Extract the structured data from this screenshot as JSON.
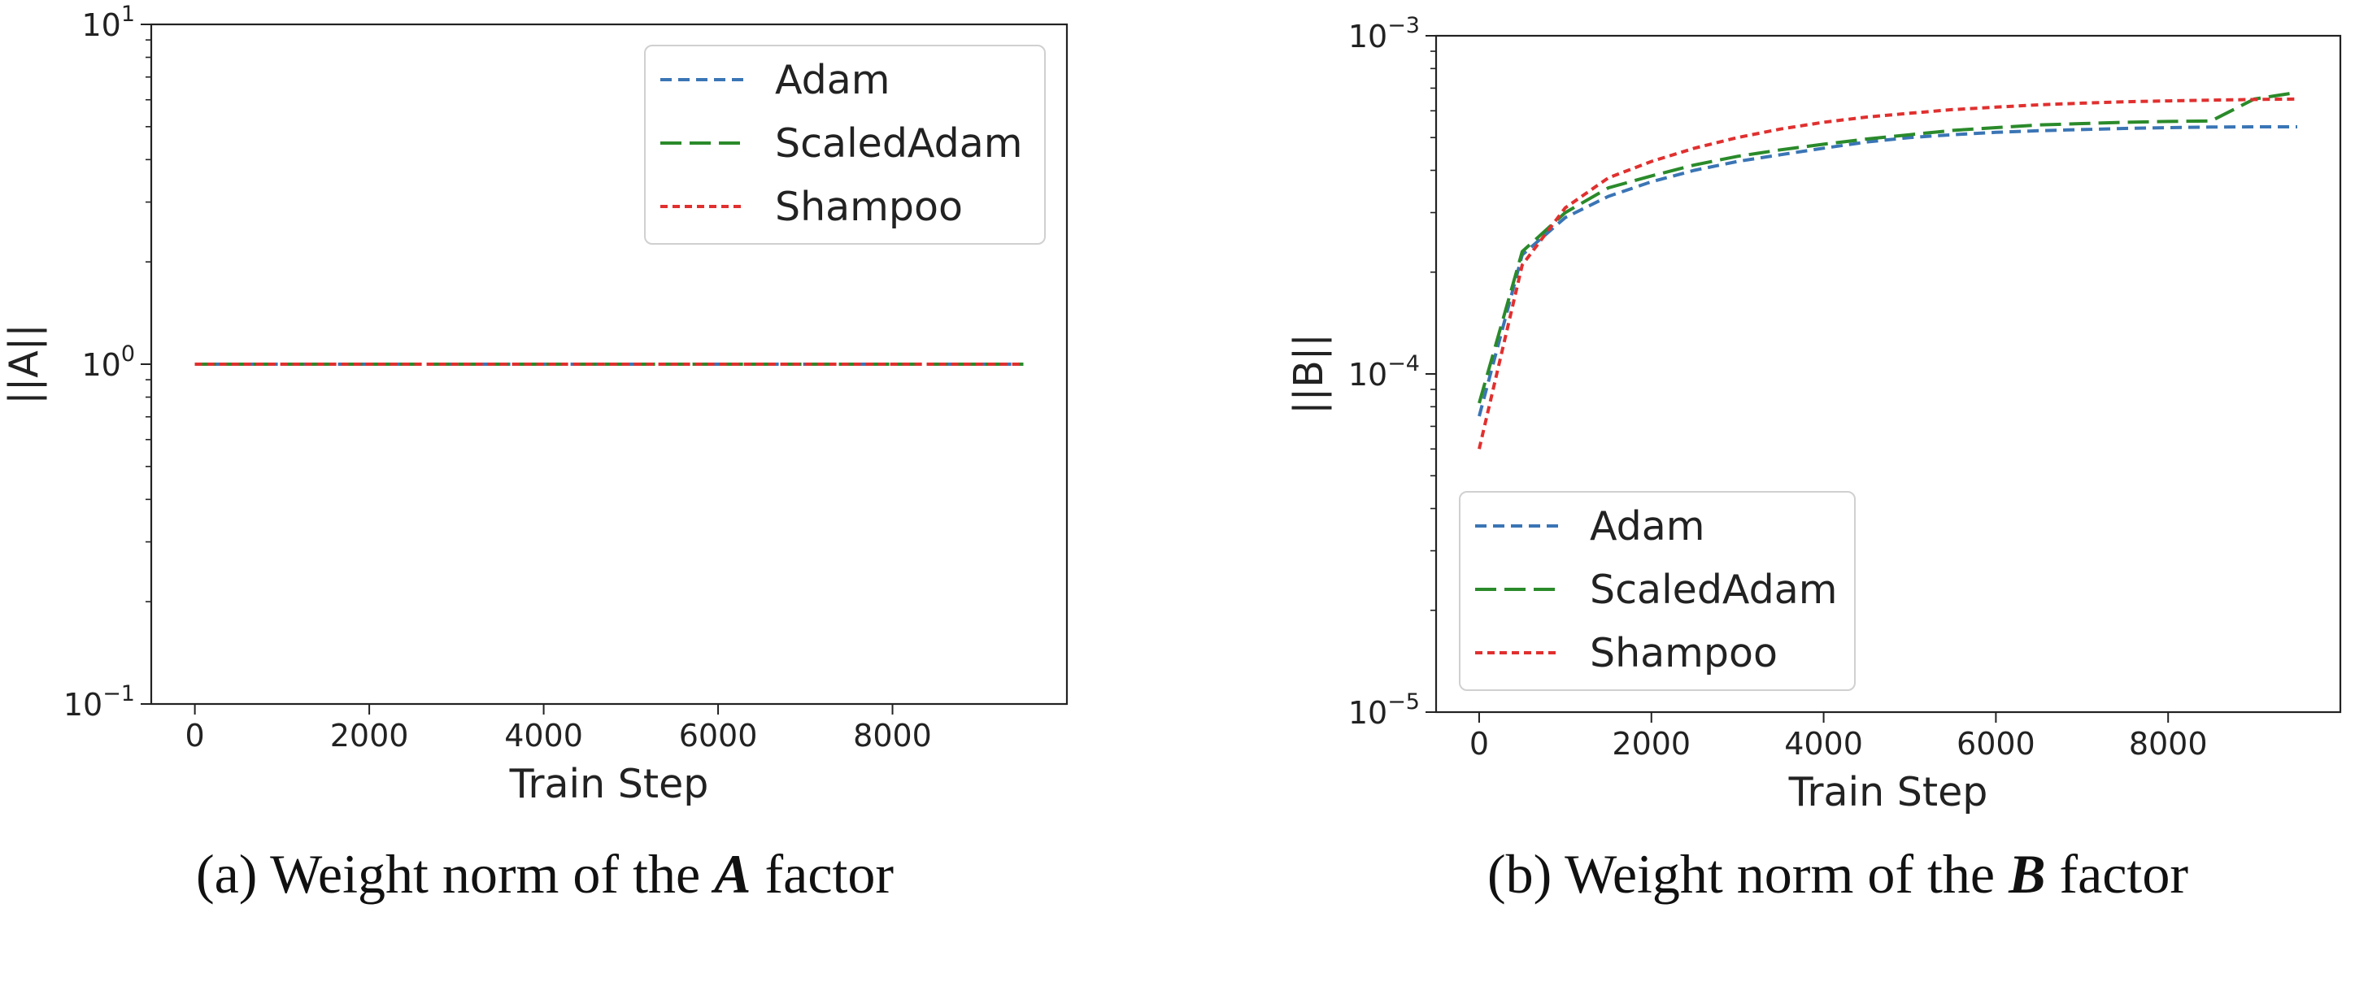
{
  "chart_data": [
    {
      "type": "line",
      "panel": "a",
      "title": "",
      "caption": {
        "prefix": "(a) Weight norm of the",
        "symbol": "A",
        "suffix": "factor"
      },
      "xlabel": "Train Step",
      "ylabel": "||A||",
      "yscale": "log",
      "xlim": [
        -500,
        10000
      ],
      "ylim": [
        0.1,
        10
      ],
      "xticks": [
        0,
        2000,
        4000,
        6000,
        8000
      ],
      "xtick_labels": [
        "0",
        "2000",
        "4000",
        "6000",
        "8000"
      ],
      "yticks": [
        {
          "value": 10,
          "base": "10",
          "exp": "1"
        },
        {
          "value": 1,
          "base": "10",
          "exp": "0"
        },
        {
          "value": 0.1,
          "base": "10",
          "exp": "−1"
        }
      ],
      "legend": "top-right",
      "x": [
        0,
        500,
        1000,
        1500,
        2000,
        2500,
        3000,
        3500,
        4000,
        4500,
        5000,
        5500,
        6000,
        6500,
        7000,
        7500,
        8000,
        8500,
        9000,
        9500
      ],
      "series": [
        {
          "name": "Adam",
          "color": "#3a75b5",
          "dash": "14 8",
          "values": [
            1,
            1,
            1,
            1,
            1,
            1,
            1,
            1,
            1,
            1,
            1,
            1,
            1,
            1,
            1,
            1,
            1,
            1,
            1,
            1
          ]
        },
        {
          "name": "ScaledAdam",
          "color": "#2a8a2a",
          "dash": "26 10",
          "values": [
            1,
            1,
            1,
            1,
            1,
            1,
            1,
            1,
            1,
            1,
            1,
            1,
            1,
            1,
            1,
            1,
            1,
            1,
            1,
            1
          ]
        },
        {
          "name": "Shampoo",
          "color": "#e0302f",
          "dash": "9 6",
          "values": [
            1,
            1,
            1,
            1,
            1,
            1,
            1,
            1,
            1,
            1,
            1,
            1,
            1,
            1,
            1,
            1,
            1,
            1,
            1,
            1
          ]
        }
      ]
    },
    {
      "type": "line",
      "panel": "b",
      "title": "",
      "caption": {
        "prefix": "(b) Weight norm of the",
        "symbol": "B",
        "suffix": "factor"
      },
      "xlabel": "Train Step",
      "ylabel": "||B||",
      "yscale": "log",
      "xlim": [
        -500,
        10000
      ],
      "ylim": [
        1e-05,
        0.001
      ],
      "xticks": [
        0,
        2000,
        4000,
        6000,
        8000
      ],
      "xtick_labels": [
        "0",
        "2000",
        "4000",
        "6000",
        "8000"
      ],
      "yticks": [
        {
          "value": 0.001,
          "base": "10",
          "exp": "−3"
        },
        {
          "value": 0.0001,
          "base": "10",
          "exp": "−4"
        },
        {
          "value": 1e-05,
          "base": "10",
          "exp": "−5"
        }
      ],
      "legend": "bottom-left",
      "x": [
        0,
        500,
        1000,
        1500,
        2000,
        2500,
        3000,
        3500,
        4000,
        4500,
        5000,
        5500,
        6000,
        6500,
        7000,
        7500,
        8000,
        8500,
        9000,
        9500
      ],
      "series": [
        {
          "name": "Adam",
          "color": "#3a75b5",
          "dash": "14 8",
          "values": [
            7.5e-05,
            0.000225,
            0.00029,
            0.000335,
            0.00037,
            0.0004,
            0.000425,
            0.000445,
            0.000465,
            0.000485,
            0.0005,
            0.00051,
            0.000518,
            0.000524,
            0.000528,
            0.000532,
            0.000535,
            0.000537,
            0.000538,
            0.000538
          ]
        },
        {
          "name": "ScaledAdam",
          "color": "#2a8a2a",
          "dash": "26 10",
          "values": [
            8.2e-05,
            0.00023,
            0.0003,
            0.000355,
            0.000385,
            0.000415,
            0.00044,
            0.00046,
            0.000478,
            0.000495,
            0.00051,
            0.000525,
            0.000535,
            0.000545,
            0.00055,
            0.000555,
            0.000558,
            0.00056,
            0.00065,
            0.00068
          ]
        },
        {
          "name": "Shampoo",
          "color": "#e0302f",
          "dash": "9 6",
          "values": [
            6e-05,
            0.00021,
            0.00031,
            0.00038,
            0.000425,
            0.000465,
            0.0005,
            0.00053,
            0.000555,
            0.000575,
            0.00059,
            0.000605,
            0.000615,
            0.000625,
            0.000632,
            0.000638,
            0.000642,
            0.000645,
            0.000648,
            0.00065
          ]
        }
      ]
    }
  ]
}
